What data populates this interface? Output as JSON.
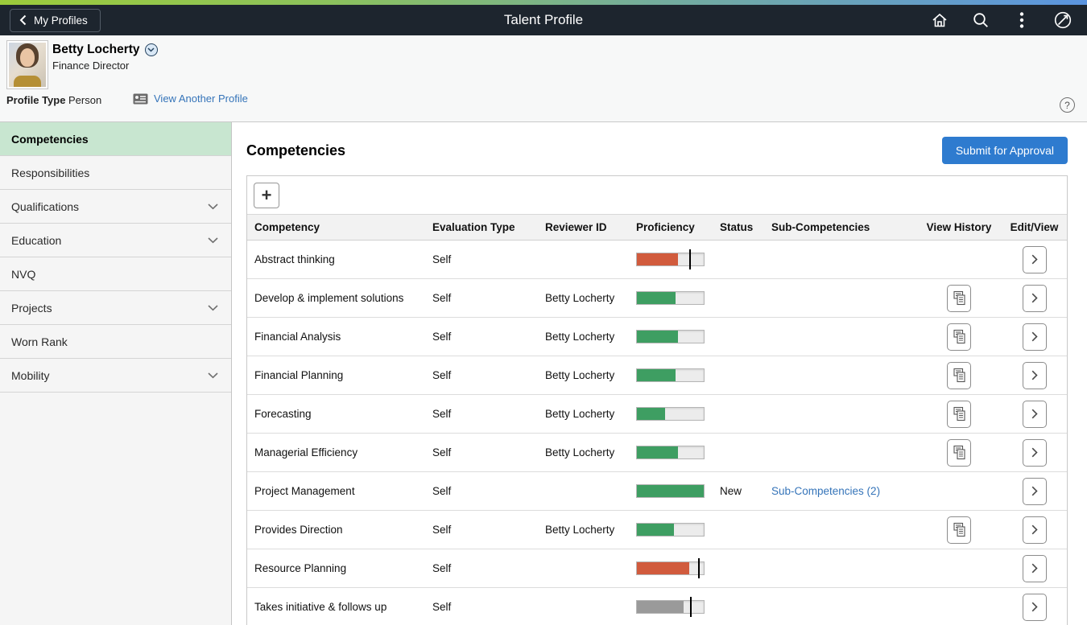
{
  "topbar": {
    "back_label": "My Profiles",
    "title": "Talent Profile",
    "icons": [
      "home-icon",
      "search-icon",
      "more-options-icon",
      "navbar-compass-icon"
    ]
  },
  "profile_header": {
    "name": "Betty Locherty",
    "job_title": "Finance Director",
    "profile_type_label": "Profile Type",
    "profile_type_value": "Person",
    "view_another_profile_label": "View Another Profile",
    "help_icon": "?"
  },
  "sidebar": {
    "items": [
      {
        "label": "Competencies",
        "selected": true,
        "expandable": false
      },
      {
        "label": "Responsibilities",
        "selected": false,
        "expandable": false
      },
      {
        "label": "Qualifications",
        "selected": false,
        "expandable": true
      },
      {
        "label": "Education",
        "selected": false,
        "expandable": true
      },
      {
        "label": "NVQ",
        "selected": false,
        "expandable": false
      },
      {
        "label": "Projects",
        "selected": false,
        "expandable": true
      },
      {
        "label": "Worn Rank",
        "selected": false,
        "expandable": false
      },
      {
        "label": "Mobility",
        "selected": false,
        "expandable": true
      }
    ]
  },
  "main": {
    "heading": "Competencies",
    "submit_button_label": "Submit for Approval",
    "add_button_label": "+"
  },
  "table": {
    "columns": [
      "Competency",
      "Evaluation Type",
      "Reviewer ID",
      "Proficiency",
      "Status",
      "Sub-Competencies",
      "View History",
      "Edit/View"
    ],
    "rows": [
      {
        "competency": "Abstract thinking",
        "evaluation_type": "Self",
        "reviewer_id": "",
        "proficiency": {
          "color": "orange",
          "fill_pct": 62,
          "marker_pct": 78
        },
        "status": "",
        "sub_competencies_link": "",
        "view_history": false
      },
      {
        "competency": "Develop & implement solutions",
        "evaluation_type": "Self",
        "reviewer_id": "Betty Locherty",
        "proficiency": {
          "color": "green",
          "fill_pct": 58,
          "marker_pct": null
        },
        "status": "",
        "sub_competencies_link": "",
        "view_history": true
      },
      {
        "competency": "Financial Analysis",
        "evaluation_type": "Self",
        "reviewer_id": "Betty Locherty",
        "proficiency": {
          "color": "green",
          "fill_pct": 61,
          "marker_pct": null
        },
        "status": "",
        "sub_competencies_link": "",
        "view_history": true
      },
      {
        "competency": "Financial Planning",
        "evaluation_type": "Self",
        "reviewer_id": "Betty Locherty",
        "proficiency": {
          "color": "green",
          "fill_pct": 58,
          "marker_pct": null
        },
        "status": "",
        "sub_competencies_link": "",
        "view_history": true
      },
      {
        "competency": "Forecasting",
        "evaluation_type": "Self",
        "reviewer_id": "Betty Locherty",
        "proficiency": {
          "color": "green",
          "fill_pct": 42,
          "marker_pct": null
        },
        "status": "",
        "sub_competencies_link": "",
        "view_history": true
      },
      {
        "competency": "Managerial Efficiency",
        "evaluation_type": "Self",
        "reviewer_id": "Betty Locherty",
        "proficiency": {
          "color": "green",
          "fill_pct": 61,
          "marker_pct": null
        },
        "status": "",
        "sub_competencies_link": "",
        "view_history": true
      },
      {
        "competency": "Project Management",
        "evaluation_type": "Self",
        "reviewer_id": "",
        "proficiency": {
          "color": "green",
          "fill_pct": 100,
          "marker_pct": null
        },
        "status": "New",
        "sub_competencies_link": "Sub-Competencies (2)",
        "view_history": false
      },
      {
        "competency": "Provides Direction",
        "evaluation_type": "Self",
        "reviewer_id": "Betty Locherty",
        "proficiency": {
          "color": "green",
          "fill_pct": 55,
          "marker_pct": null
        },
        "status": "",
        "sub_competencies_link": "",
        "view_history": true
      },
      {
        "competency": "Resource Planning",
        "evaluation_type": "Self",
        "reviewer_id": "",
        "proficiency": {
          "color": "orange",
          "fill_pct": 78,
          "marker_pct": 92
        },
        "status": "",
        "sub_competencies_link": "",
        "view_history": false
      },
      {
        "competency": "Takes initiative & follows up",
        "evaluation_type": "Self",
        "reviewer_id": "",
        "proficiency": {
          "color": "gray",
          "fill_pct": 70,
          "marker_pct": 80
        },
        "status": "",
        "sub_competencies_link": "",
        "view_history": false
      }
    ]
  },
  "colors": {
    "proficiency_green": "#3E9E62",
    "proficiency_orange": "#D15B3D",
    "proficiency_gray": "#9A9A9A",
    "accent_blue": "#2E7BCF",
    "link_blue": "#3574B9",
    "selected_item_green": "#C8E6D0",
    "navbar_dark": "#1D252E",
    "strip_gradient_start": "#9CCB3B",
    "strip_gradient_end": "#5B95E0"
  }
}
